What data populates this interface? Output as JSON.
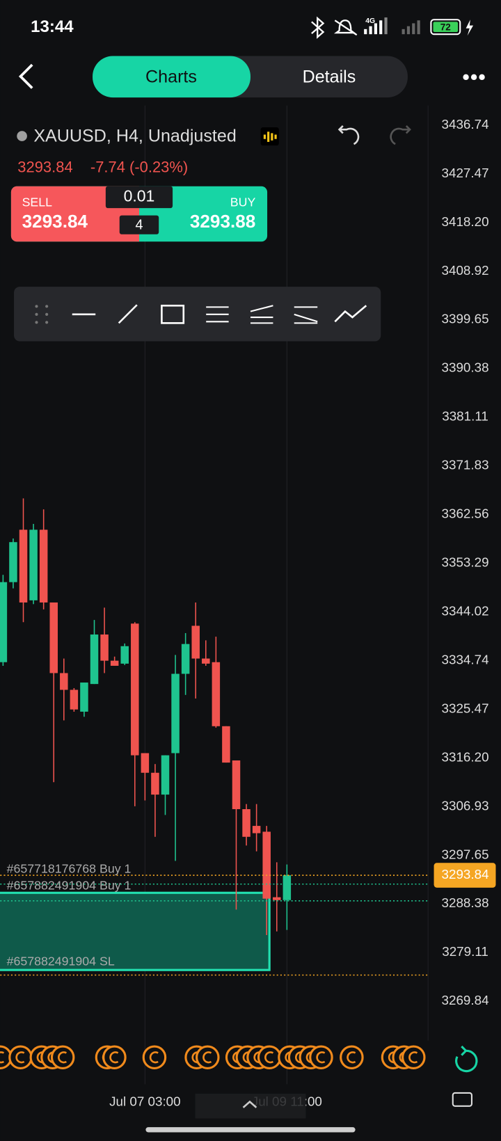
{
  "status_bar": {
    "time": "13:44",
    "network": "4G",
    "battery": "72"
  },
  "header": {
    "tabs": [
      "Charts",
      "Details"
    ]
  },
  "symbol": {
    "title": "XAUUSD, H4, Unadjusted"
  },
  "quote": {
    "price": "3293.84",
    "change": "-7.74 (-0.23%)"
  },
  "trade_panel": {
    "sell_label": "SELL",
    "sell_price": "3293.84",
    "volume": "0.01",
    "count": "4",
    "buy_label": "BUY",
    "buy_price": "3293.88"
  },
  "chart_data": {
    "type": "candlestick",
    "categories": [
      null,
      null,
      null,
      null,
      null,
      null,
      null,
      null,
      null,
      null,
      null,
      null,
      null,
      null,
      "Jul 07 03:00",
      null,
      null,
      null,
      null,
      null,
      null,
      null,
      null,
      null,
      null,
      null,
      null,
      null,
      "Jul 09 11:00"
    ],
    "open": [
      3334.44,
      3349.69,
      3359.67,
      3346.22,
      3359.67,
      3345.81,
      3332.36,
      3329.17,
      3325.01,
      3330.28,
      3339.71,
      3334.72,
      3334.16,
      3341.79,
      3317.11,
      3313.37,
      3309.21,
      3317.11,
      3332.22,
      3341.37,
      3335.13,
      3334.44,
      3322.24,
      3315.72,
      3306.44,
      3303.25,
      3302.14,
      3289.66,
      3289.11
    ],
    "high": [
      3351.07,
      3358.0,
      3365.63,
      3360.78,
      3363.55,
      3345.81,
      3335.13,
      3329.5,
      3330.56,
      3342.48,
      3344.83,
      3335.5,
      3338.0,
      3342.06,
      3317.11,
      3315.03,
      3316.7,
      3335.82,
      3339.98,
      3345.81,
      3338.6,
      3339.29,
      3322.24,
      3315.72,
      3307.41,
      3307.41,
      3303.25,
      3296.32,
      3295.9
    ],
    "low": [
      3333.75,
      3348.5,
      3342.06,
      3345.5,
      3344.5,
      3311.57,
      3323.35,
      3325.0,
      3324.04,
      3330.28,
      3332.36,
      3333.75,
      3333.9,
      3306.99,
      3308.1,
      3301.17,
      3305.33,
      3296.59,
      3328.2,
      3327.51,
      3333.75,
      3321.96,
      3315.31,
      3287.31,
      3299.51,
      3298.4,
      3282.46,
      3283.15,
      3283.43
    ],
    "close": [
      3349.69,
      3357.31,
      3345.81,
      3359.67,
      3345.81,
      3332.36,
      3329.17,
      3325.43,
      3330.56,
      3339.71,
      3334.72,
      3333.75,
      3337.49,
      3316.7,
      3313.37,
      3309.21,
      3316.7,
      3332.22,
      3337.9,
      3335.13,
      3334.16,
      3322.24,
      3315.31,
      3306.44,
      3301.17,
      3301.86,
      3289.39,
      3289.11,
      3293.84
    ],
    "up_color": "#1fc48f",
    "down_color": "#f0544f",
    "ylim": [
      3262.35,
      3441.18
    ],
    "yticks": [
      3436.74,
      3427.47,
      {
        "value": 3418.2,
        "label": "3418.20"
      },
      3408.92,
      3399.65,
      3390.38,
      3381.11,
      3371.83,
      3362.56,
      3353.29,
      3344.02,
      3334.74,
      3325.47,
      {
        "value": 3316.2,
        "label": "3316.20"
      },
      3306.93,
      3297.65,
      3288.38,
      3279.11,
      3269.84
    ],
    "xgrid": true,
    "orders": [
      {
        "label": "#657718176768 Buy 1",
        "price": 3292.16
      },
      {
        "label": "#657882491904 Buy 1",
        "price": 3288.97
      }
    ],
    "stop_loss": {
      "label": "#657882491904 SL",
      "price": 3274.83,
      "zone": [
        3290.5,
        3275.8
      ]
    }
  }
}
